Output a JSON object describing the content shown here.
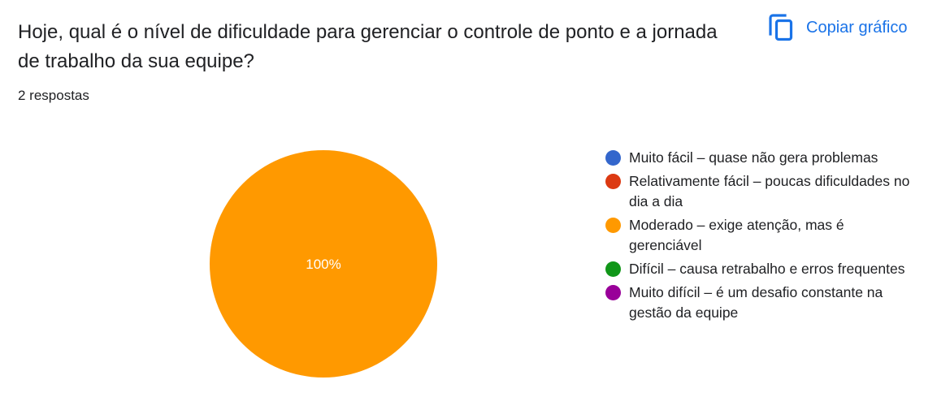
{
  "header": {
    "question": "Hoje, qual é o nível de dificuldade para gerenciar o controle de ponto e a jornada de trabalho da sua equipe?",
    "responses": "2 respostas",
    "copy_label": "Copiar gráfico",
    "copy_icon": "copy-icon"
  },
  "colors": {
    "accent": "#1a73e8",
    "text": "#202124"
  },
  "chart_data": {
    "type": "pie",
    "title": "Hoje, qual é o nível de dificuldade para gerenciar o controle de ponto e a jornada de trabalho da sua equipe?",
    "total_responses": 2,
    "legend_position": "right",
    "categories": [
      "Muito fácil – quase não gera problemas",
      "Relativamente fácil – poucas dificuldades no dia a dia",
      "Moderado – exige atenção, mas é gerenciável",
      "Difícil – causa retrabalho e erros frequentes",
      "Muito difícil – é um desafio constante na gestão da equipe"
    ],
    "values": [
      0,
      0,
      100,
      0,
      0
    ],
    "unit": "%",
    "colors": [
      "#3366cc",
      "#dc3912",
      "#ff9900",
      "#109618",
      "#990099"
    ],
    "data_labels": [
      "",
      "",
      "100%",
      "",
      ""
    ]
  }
}
